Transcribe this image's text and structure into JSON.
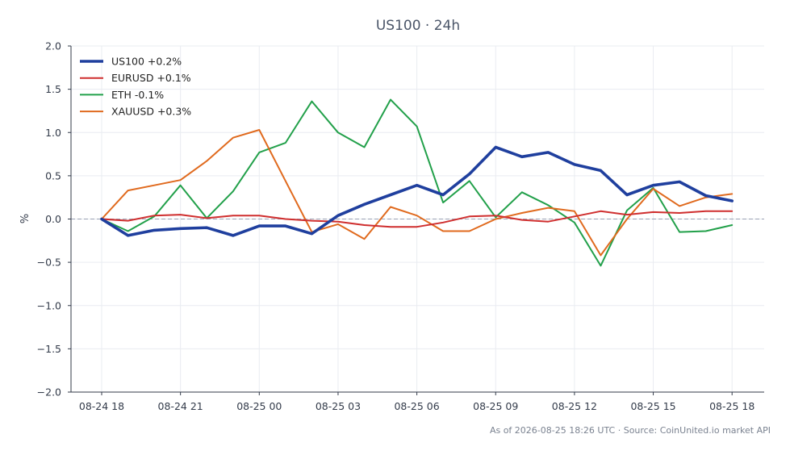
{
  "chart_data": {
    "type": "line",
    "title": "US100 · 24h",
    "xlabel": "",
    "ylabel": "%",
    "ylim": [
      -2.0,
      2.0
    ],
    "y_ticks": [
      -2.0,
      -1.5,
      -1.0,
      -0.5,
      0.0,
      0.5,
      1.0,
      1.5,
      2.0
    ],
    "y_tick_labels": [
      "−2.0",
      "−1.5",
      "−1.0",
      "−0.5",
      "0.0",
      "0.5",
      "1.0",
      "1.5",
      "2.0"
    ],
    "x_tick_labels": [
      "08-24 18",
      "08-24 21",
      "08-25 00",
      "08-25 03",
      "08-25 06",
      "08-25 09",
      "08-25 12",
      "08-25 15",
      "08-25 18"
    ],
    "x": [
      "08-24 18",
      "08-24 19",
      "08-24 20",
      "08-24 21",
      "08-24 22",
      "08-24 23",
      "08-25 00",
      "08-25 01",
      "08-25 02",
      "08-25 03",
      "08-25 04",
      "08-25 05",
      "08-25 06",
      "08-25 07",
      "08-25 08",
      "08-25 09",
      "08-25 10",
      "08-25 11",
      "08-25 12",
      "08-25 13",
      "08-25 14",
      "08-25 15",
      "08-25 16",
      "08-25 17",
      "08-25 18"
    ],
    "grid": true,
    "zero_line": true,
    "legend_position": "top-left",
    "series": [
      {
        "name": "US100 +0.2%",
        "color": "#1f3f9e",
        "values": [
          0.0,
          -0.19,
          -0.13,
          -0.11,
          -0.1,
          -0.19,
          -0.08,
          -0.08,
          -0.17,
          0.04,
          0.17,
          0.28,
          0.39,
          0.28,
          0.52,
          0.83,
          0.72,
          0.77,
          0.63,
          0.56,
          0.28,
          0.39,
          0.43,
          0.27,
          0.21
        ]
      },
      {
        "name": "EURUSD +0.1%",
        "color": "#cf2e2e",
        "values": [
          0.0,
          -0.02,
          0.04,
          0.05,
          0.01,
          0.04,
          0.04,
          0.0,
          -0.02,
          -0.03,
          -0.07,
          -0.09,
          -0.09,
          -0.04,
          0.03,
          0.04,
          -0.01,
          -0.03,
          0.03,
          0.09,
          0.05,
          0.08,
          0.07,
          0.09,
          0.09
        ]
      },
      {
        "name": "ETH -0.1%",
        "color": "#22a04a",
        "values": [
          0.0,
          -0.14,
          0.03,
          0.39,
          0.01,
          0.32,
          0.77,
          0.88,
          1.36,
          1.0,
          0.83,
          1.38,
          1.07,
          0.19,
          0.44,
          0.02,
          0.31,
          0.16,
          -0.04,
          -0.54,
          0.1,
          0.36,
          -0.15,
          -0.14,
          -0.07
        ]
      },
      {
        "name": "XAUUSD +0.3%",
        "color": "#e06a1e",
        "values": [
          0.0,
          0.33,
          0.39,
          0.45,
          0.67,
          0.94,
          1.03,
          0.44,
          -0.15,
          -0.06,
          -0.23,
          0.14,
          0.04,
          -0.14,
          -0.14,
          0.0,
          0.07,
          0.13,
          0.09,
          -0.42,
          0.0,
          0.35,
          0.15,
          0.25,
          0.29
        ]
      }
    ]
  },
  "footer": "As of 2026-08-25 18:26 UTC · Source: CoinUnited.io market API"
}
